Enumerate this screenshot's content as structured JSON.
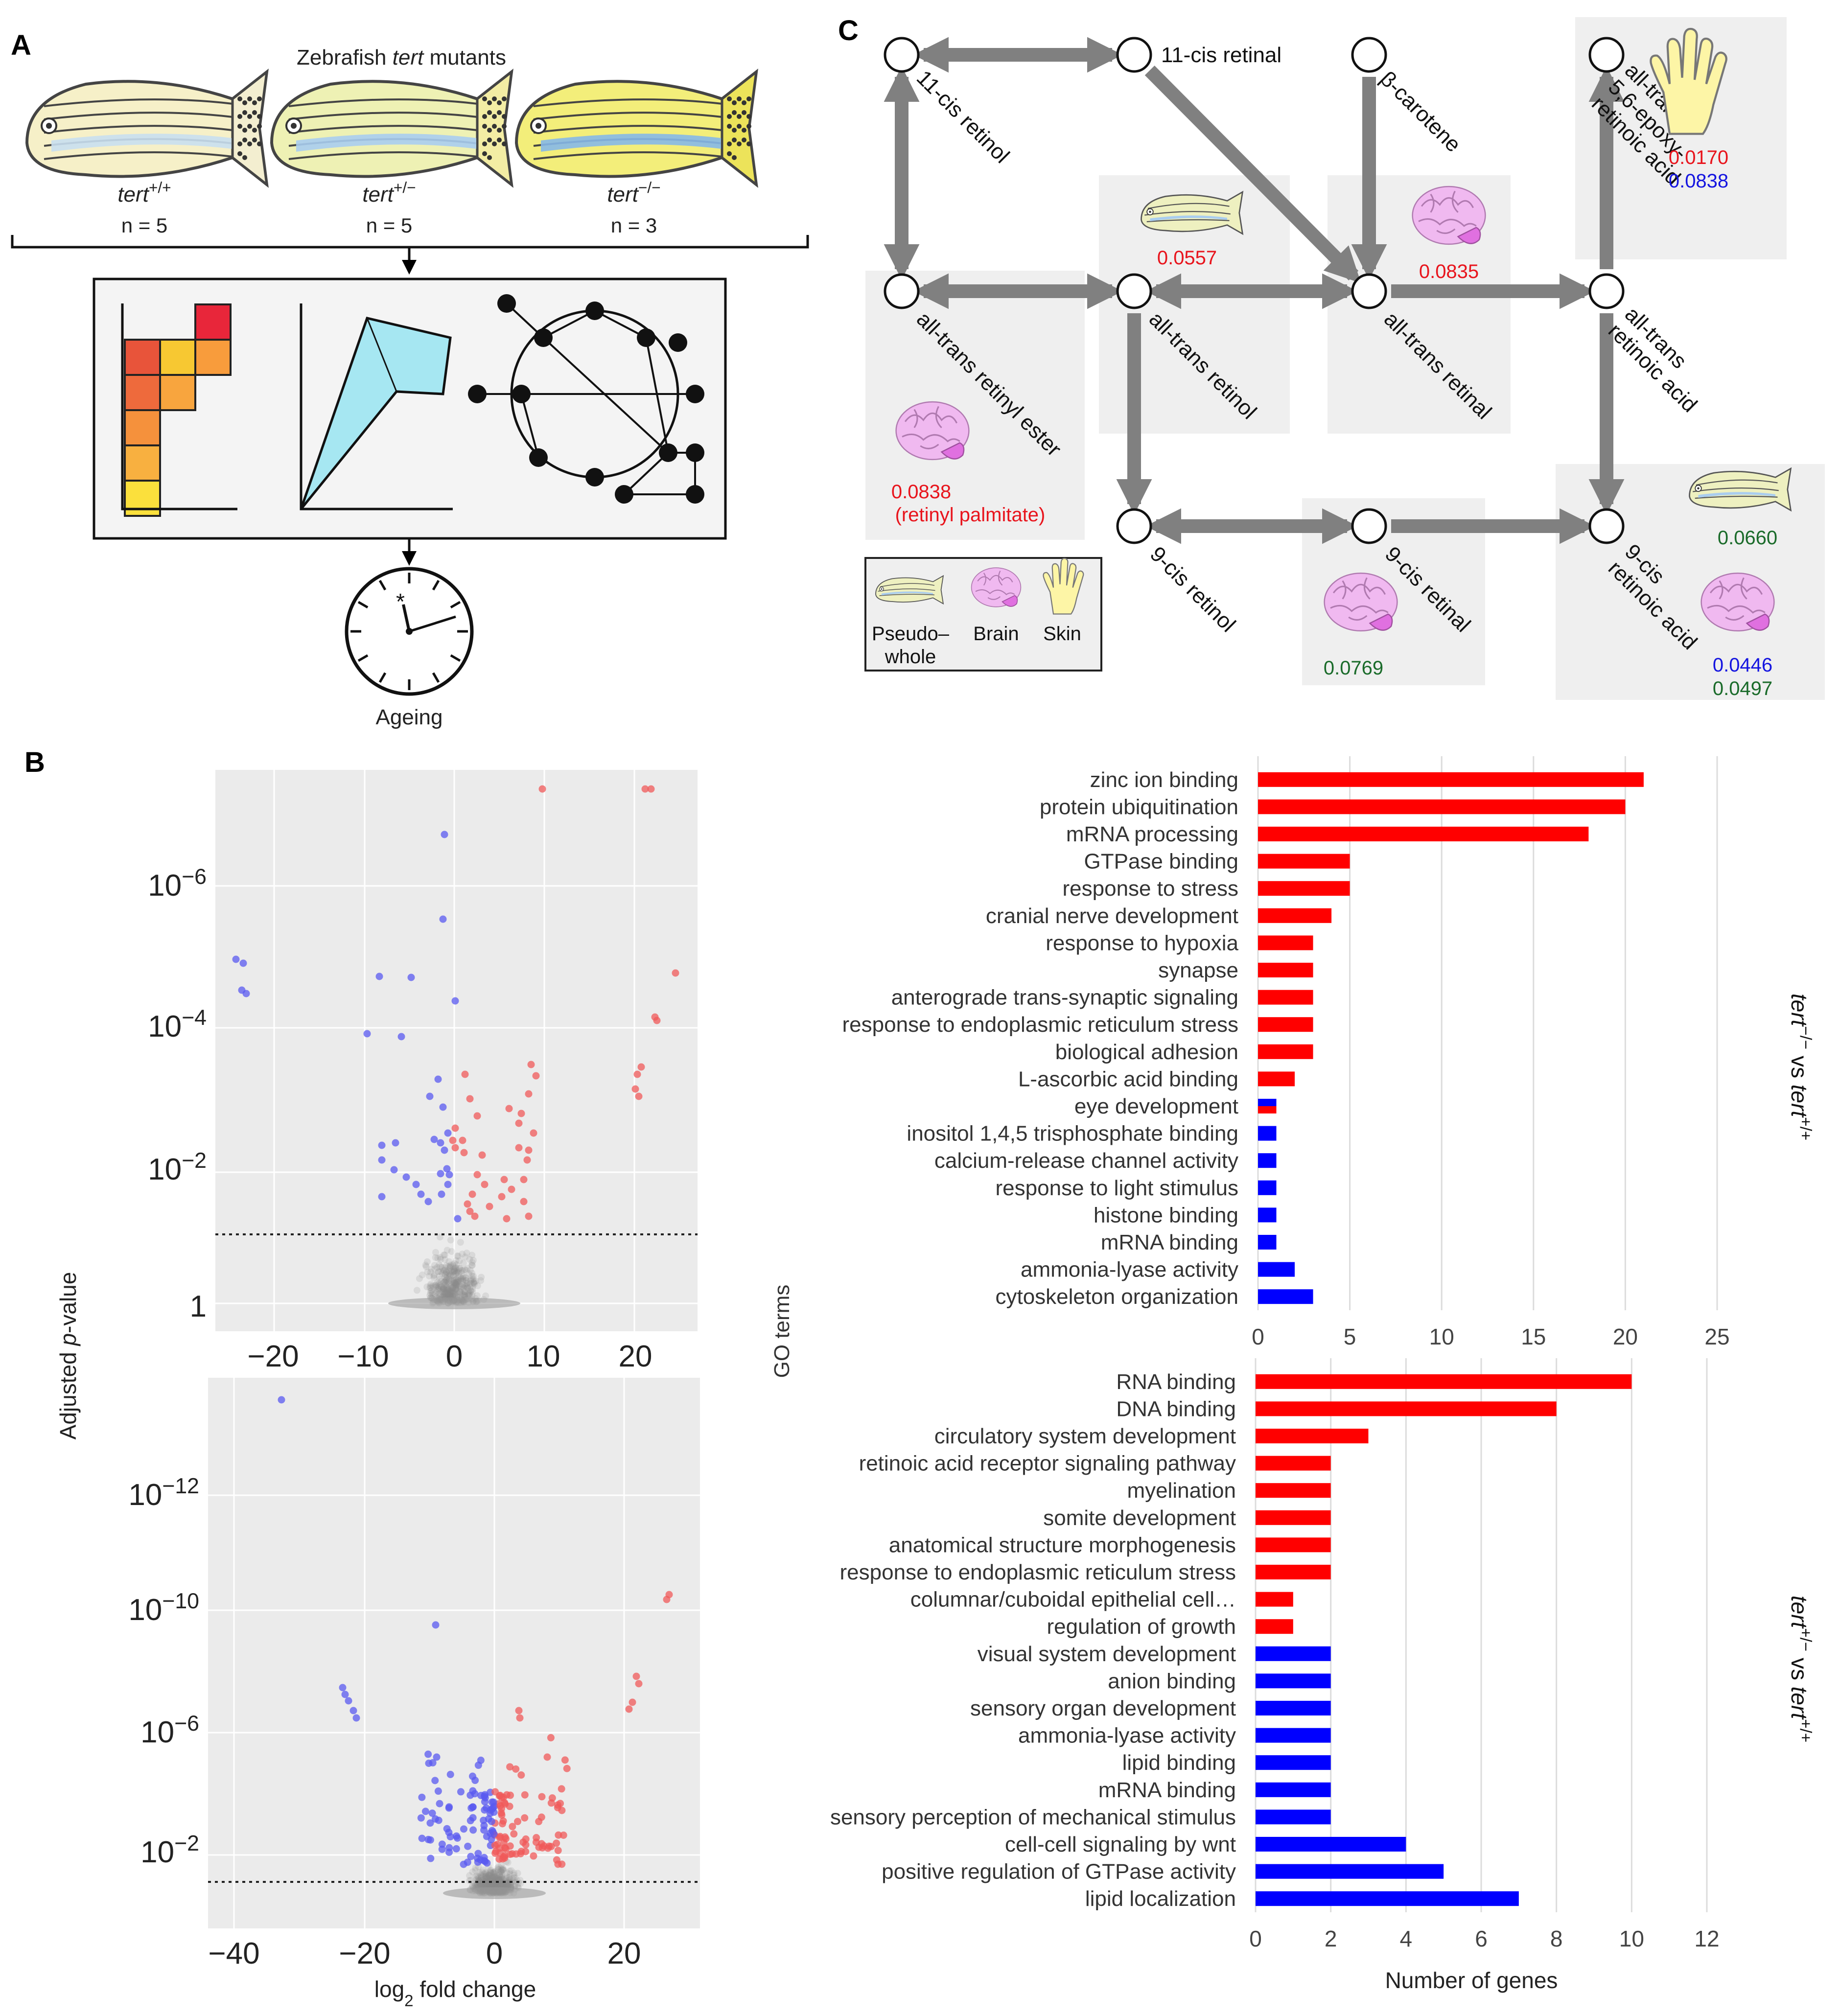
{
  "panel_labels": [
    "A",
    "B",
    "C"
  ],
  "panelA": {
    "title_pre": "Zebrafish ",
    "title_em": "tert",
    "title_post": " mutants",
    "fish": [
      {
        "gene": "tert",
        "sup": "+/+",
        "n": "n = 5",
        "body": "#f6f0c8",
        "stripe": "#c9dff0",
        "tail": "#f3eed0"
      },
      {
        "gene": "tert",
        "sup": "+/−",
        "n": "n = 5",
        "body": "#eef1b4",
        "stripe": "#a9cdef",
        "tail": "#f3eda4"
      },
      {
        "gene": "tert",
        "sup": "−/−",
        "n": "n = 3",
        "body": "#f3ee7a",
        "stripe": "#86b8e8",
        "tail": "#ece35a"
      }
    ],
    "clock_label": "Ageing",
    "clock_star": "*"
  },
  "panelB": {
    "y_axis_label_pre": "Adjusted ",
    "y_axis_label_em": "p",
    "y_axis_label_post": "-value",
    "x_axis_label_pre": "log",
    "x_axis_label_sub": "2",
    "x_axis_label_post": " fold change",
    "volcano_top": {
      "x_ticks": [
        "−20",
        "−10",
        "0",
        "10",
        "20"
      ],
      "y_ticks": [
        {
          "base": "10",
          "exp": "−6"
        },
        {
          "base": "10",
          "exp": "−4"
        },
        {
          "base": "10",
          "exp": "−2"
        },
        {
          "base": "1",
          "exp": ""
        }
      ]
    },
    "volcano_bottom": {
      "x_ticks": [
        "−40",
        "−20",
        "0",
        "20"
      ],
      "y_ticks": [
        {
          "base": "10",
          "exp": "−12"
        },
        {
          "base": "10",
          "exp": "−10"
        },
        {
          "base": "10",
          "exp": "−6"
        },
        {
          "base": "10",
          "exp": "−2"
        }
      ]
    }
  },
  "chart_data": [
    {
      "type": "bar",
      "orientation": "horizontal",
      "title": "",
      "comparison_label": {
        "a": "tert",
        "a_sup": "−/−",
        "vs": " vs ",
        "b": "tert",
        "b_sup": "+/+"
      },
      "xlabel": "",
      "ylabel": "GO terms",
      "xlim": [
        0,
        25
      ],
      "x_ticks": [
        "0",
        "5",
        "10",
        "15",
        "20",
        "25"
      ],
      "categories": [
        "zinc ion binding",
        "protein ubiquitination",
        "mRNA processing",
        "GTPase binding",
        "response to stress",
        "cranial nerve development",
        "response to hypoxia",
        "synapse",
        "anterograde trans-synaptic signaling",
        "response to endoplasmic reticulum stress",
        "biological adhesion",
        "L-ascorbic acid binding",
        "eye development",
        "inositol 1,4,5 trisphosphate binding",
        "calcium-release channel activity",
        "response to light stimulus",
        "histone binding",
        "mRNA binding",
        "ammonia-lyase activity",
        "cytoskeleton organization"
      ],
      "series": [
        {
          "name": "up",
          "color": "#ff0000",
          "values": [
            21,
            20,
            18,
            5,
            5,
            4,
            3,
            3,
            3,
            3,
            3,
            2,
            1,
            0,
            0,
            0,
            0,
            0,
            0,
            0
          ]
        },
        {
          "name": "down",
          "color": "#0000ff",
          "values": [
            0,
            0,
            0,
            0,
            0,
            0,
            0,
            0,
            0,
            0,
            0,
            0,
            1,
            1,
            1,
            1,
            1,
            1,
            2,
            3
          ]
        }
      ]
    },
    {
      "type": "bar",
      "orientation": "horizontal",
      "title": "",
      "comparison_label": {
        "a": "tert",
        "a_sup": "+/−",
        "vs": " vs ",
        "b": "tert",
        "b_sup": "+/+"
      },
      "xlabel": "Number of genes",
      "ylabel": "GO terms",
      "xlim": [
        0,
        12
      ],
      "x_ticks": [
        "0",
        "2",
        "4",
        "6",
        "8",
        "10",
        "12"
      ],
      "categories": [
        "RNA binding",
        "DNA binding",
        "circulatory system development",
        "retinoic acid receptor signaling pathway",
        "myelination",
        "somite development",
        "anatomical structure morphogenesis",
        "response to endoplasmic reticulum stress",
        "columnar/cuboidal epithelial cell…",
        "regulation of growth",
        "visual system development",
        "anion binding",
        "sensory organ development",
        "ammonia-lyase activity",
        "lipid binding",
        "mRNA binding",
        "sensory perception of mechanical stimulus",
        "cell-cell signaling by wnt",
        "positive regulation of GTPase activity",
        "lipid localization"
      ],
      "series": [
        {
          "name": "up",
          "color": "#ff0000",
          "values": [
            10,
            8,
            3,
            2,
            2,
            2,
            2,
            2,
            1,
            1,
            0,
            0,
            0,
            0,
            0,
            0,
            0,
            0,
            0,
            0
          ]
        },
        {
          "name": "down",
          "color": "#0000ff",
          "values": [
            0,
            0,
            0,
            0,
            0,
            0,
            0,
            0,
            0,
            0,
            2,
            2,
            2,
            2,
            2,
            2,
            2,
            4,
            5,
            7
          ]
        }
      ]
    }
  ],
  "panelC": {
    "nodes": [
      {
        "id": "n1",
        "label": "11-cis retinol"
      },
      {
        "id": "n2",
        "label": "11-cis retinal"
      },
      {
        "id": "n3",
        "label": "β-carotene"
      },
      {
        "id": "n4",
        "label": "all-trans 5,6-epoxy-retinoic acid",
        "lines": [
          "all-trans",
          "5,6-epoxy-",
          "retinoic acid"
        ]
      },
      {
        "id": "n5",
        "label": "all-trans retinyl ester"
      },
      {
        "id": "n6",
        "label": "all-trans retinol"
      },
      {
        "id": "n7",
        "label": "all-trans retinal"
      },
      {
        "id": "n8",
        "label": "all-trans retinoic acid",
        "lines": [
          "all-trans",
          "retinoic acid"
        ]
      },
      {
        "id": "n9",
        "label": "9-cis retinol"
      },
      {
        "id": "n10",
        "label": "9-cis retinal"
      },
      {
        "id": "n11",
        "label": "9-cis retinoic acid",
        "lines": [
          "9-cis",
          "retinoic acid"
        ]
      }
    ],
    "values": {
      "epoxy_red": "0.0170",
      "epoxy_blue": "0.0838",
      "retinol_red": "0.0557",
      "retinal_red": "0.0835",
      "ester_red": "0.0838",
      "ester_note": "(retinyl palmitate)",
      "retinal9_green": "0.0769",
      "ra9_green1": "0.0660",
      "ra9_blue": "0.0446",
      "ra9_green2": "0.0497"
    },
    "legend": {
      "pseudo_line1": "Pseudo–",
      "pseudo_line2": "whole",
      "brain": "Brain",
      "skin": "Skin"
    },
    "colors": {
      "red": "#e8141c",
      "blue": "#1515e0",
      "green": "#1a6b2a",
      "arrow": "#808080",
      "box": "#efefef"
    }
  }
}
